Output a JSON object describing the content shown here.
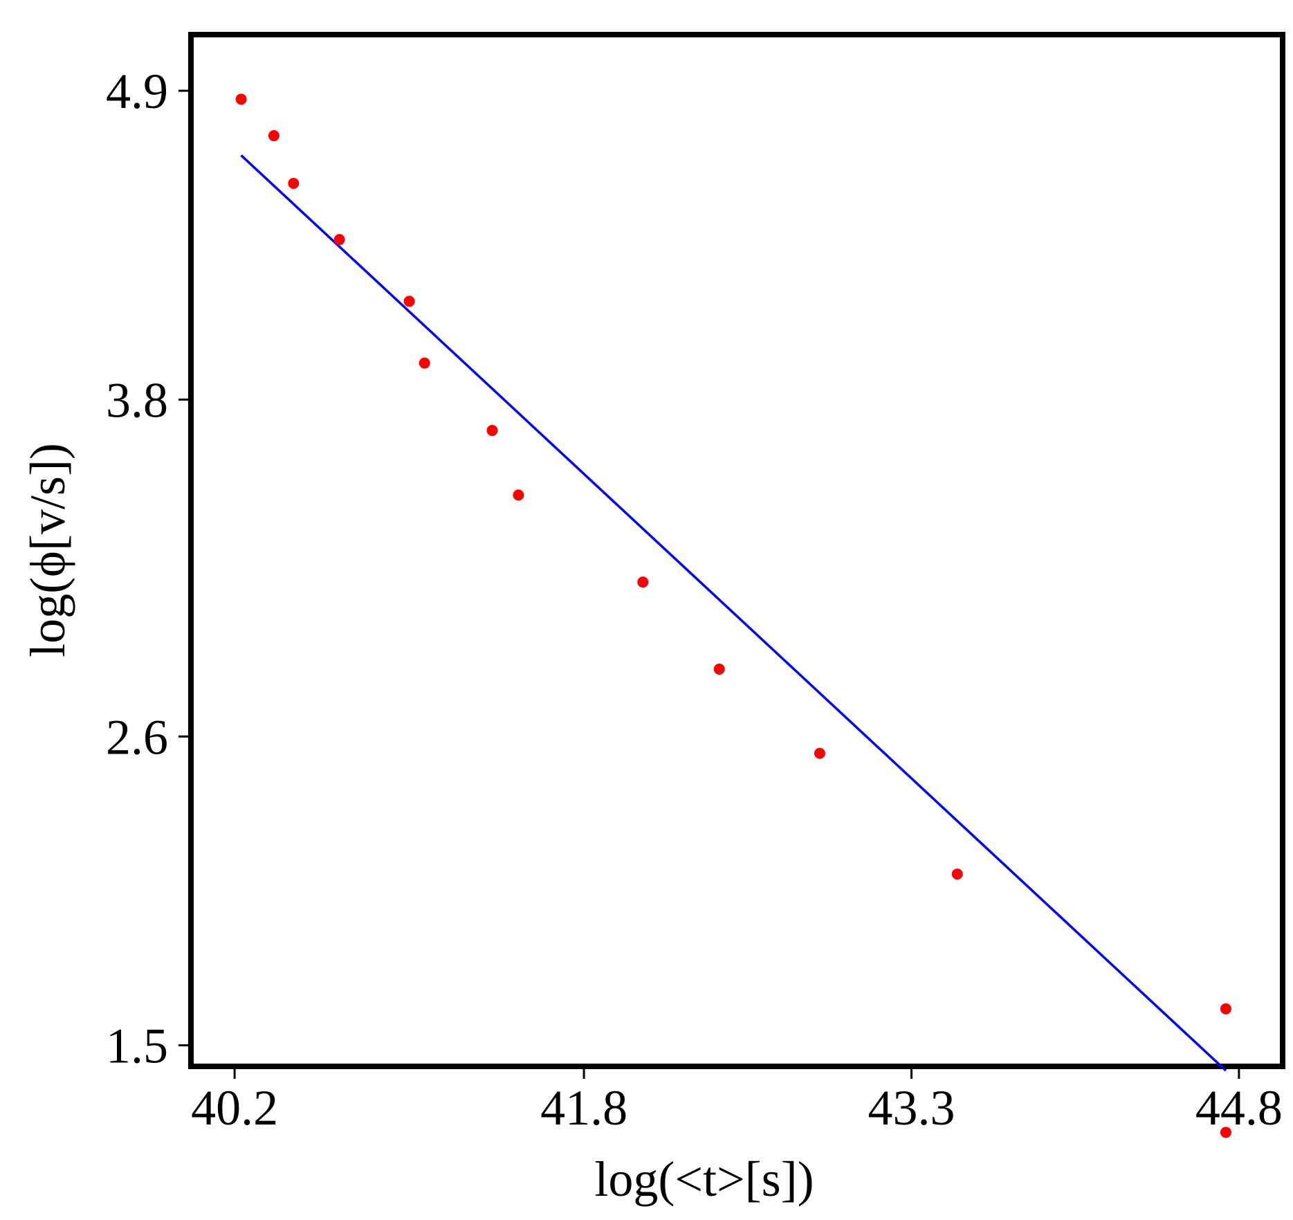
{
  "chart_data": {
    "type": "scatter",
    "title": "",
    "xlabel": "log(<t>[s])",
    "ylabel": "log(ϕ[v/s])",
    "xlim": [
      40.0,
      45.0
    ],
    "ylim": [
      1.425,
      5.1
    ],
    "xticks": [
      40.2,
      41.8,
      43.3,
      44.8
    ],
    "xtick_labels": [
      "40.2",
      "41.8",
      "43.3",
      "44.8"
    ],
    "yticks": [
      1.5,
      2.6,
      3.8,
      4.9
    ],
    "ytick_labels": [
      "1.5",
      "2.6",
      "3.8",
      "4.9"
    ],
    "grid": false,
    "legend": "none",
    "series": [
      {
        "mode": "markers",
        "color": "#ff0000",
        "x": [
          40.23,
          40.38,
          40.47,
          40.68,
          41.0,
          41.07,
          41.38,
          41.5,
          42.07,
          42.42,
          42.88,
          43.51,
          44.74,
          44.74
        ],
        "y": [
          4.87,
          4.74,
          4.57,
          4.37,
          4.15,
          3.93,
          3.69,
          3.46,
          3.15,
          2.84,
          2.54,
          2.11,
          1.63,
          1.19
        ]
      },
      {
        "mode": "line",
        "color": "#0000ff",
        "x": [
          40.23,
          44.74
        ],
        "y": [
          4.67,
          1.41
        ]
      }
    ]
  }
}
